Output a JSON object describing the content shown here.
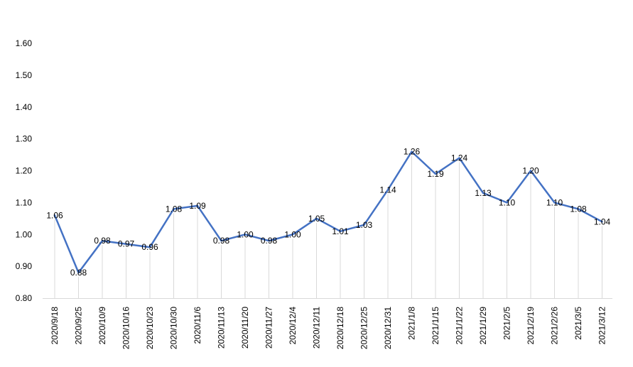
{
  "chart_data": {
    "type": "line",
    "categories": [
      "2020/9/18",
      "2020/9/25",
      "2020/10/9",
      "2020/10/16",
      "2020/10/23",
      "2020/10/30",
      "2020/11/6",
      "2020/11/13",
      "2020/11/20",
      "2020/11/27",
      "2020/12/4",
      "2020/12/11",
      "2020/12/18",
      "2020/12/25",
      "2020/12/31",
      "2021/1/8",
      "2021/1/15",
      "2021/1/22",
      "2021/1/29",
      "2021/2/5",
      "2021/2/19",
      "2021/2/26",
      "2021/3/5",
      "2021/3/12"
    ],
    "series": [
      {
        "values": [
          1.06,
          0.88,
          0.98,
          0.97,
          0.96,
          1.08,
          1.09,
          0.98,
          1.0,
          0.98,
          1.0,
          1.05,
          1.01,
          1.03,
          1.14,
          1.26,
          1.19,
          1.24,
          1.13,
          1.1,
          1.2,
          1.1,
          1.08,
          1.04
        ]
      }
    ],
    "data_labels": [
      "1.06",
      "0.88",
      "0.98",
      "0.97",
      "0.96",
      "1.08",
      "1.09",
      "0.98",
      "1.00",
      "0.98",
      "1.00",
      "1.05",
      "1.01",
      "1.03",
      "1.14",
      "1.26",
      "1.19",
      "1.24",
      "1.13",
      "1.10",
      "1.20",
      "1.10",
      "1.08",
      "1.04"
    ],
    "y_ticks": [
      "0.80",
      "0.90",
      "1.00",
      "1.10",
      "1.20",
      "1.30",
      "1.40",
      "1.50",
      "1.60"
    ],
    "ylim": [
      0.8,
      1.6
    ],
    "title": "",
    "xlabel": "",
    "ylabel": "",
    "grid": "vertical-light",
    "legend": "none",
    "colors": {
      "line": "#4472c4",
      "grid": "#d9d9d9",
      "axis": "#d9d9d9",
      "text": "#000000"
    }
  }
}
